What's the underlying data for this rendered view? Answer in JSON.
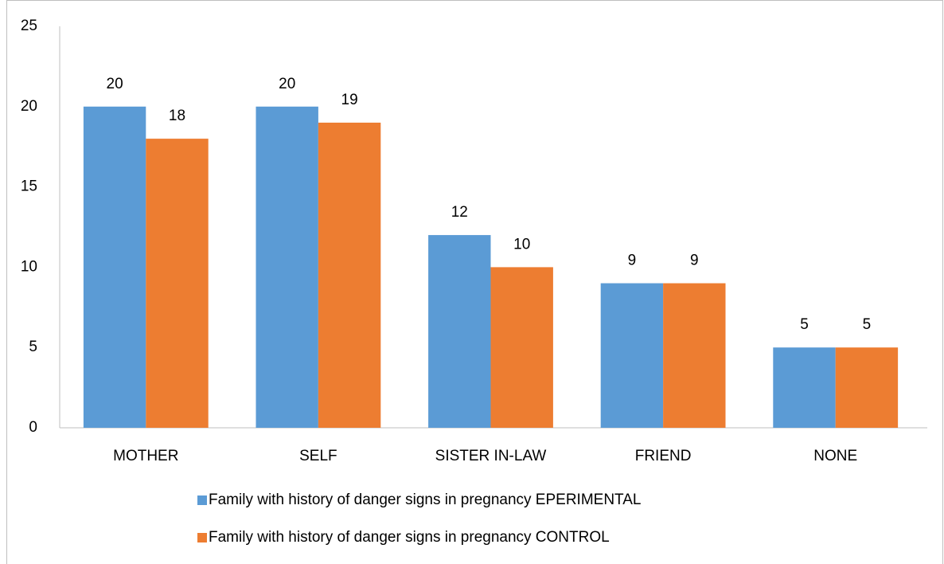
{
  "chart_data": {
    "type": "bar",
    "categories": [
      "MOTHER",
      "SELF",
      "SISTER IN-LAW",
      "FRIEND",
      "NONE"
    ],
    "series": [
      {
        "name": "Family with history of danger signs in pregnancy EPERIMENTAL",
        "color": "#5b9bd5",
        "values": [
          20,
          20,
          12,
          9,
          5
        ]
      },
      {
        "name": "Family with history of danger signs in pregnancy CONTROL",
        "color": "#ed7d31",
        "values": [
          18,
          19,
          10,
          9,
          5
        ]
      }
    ],
    "ylim": [
      0,
      25
    ],
    "yticks": [
      0,
      5,
      10,
      15,
      20,
      25
    ],
    "grid": false,
    "legend": "bottom"
  }
}
